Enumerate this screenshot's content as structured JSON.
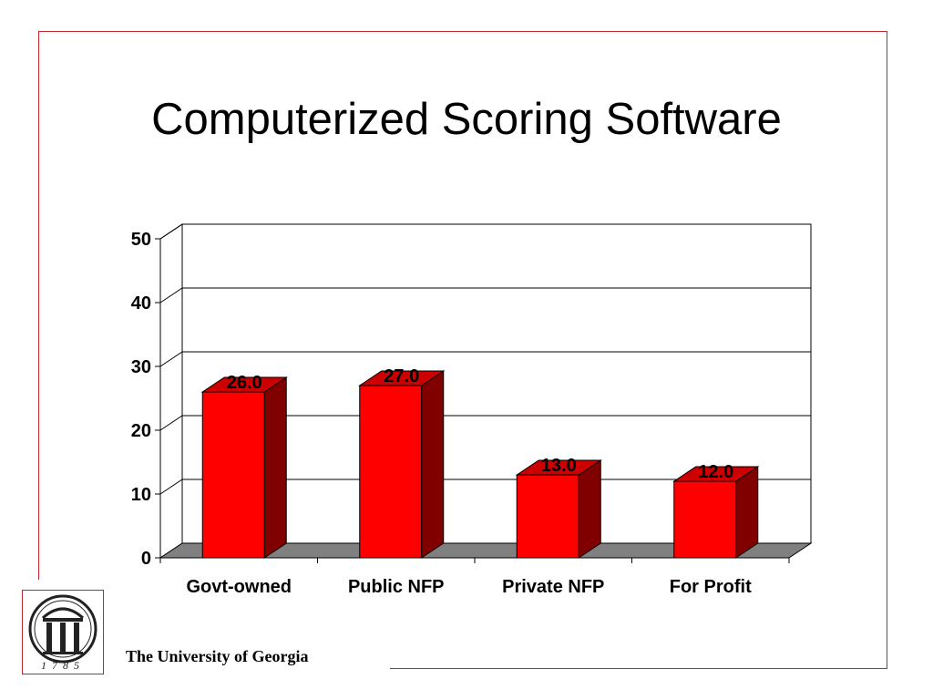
{
  "slide": {
    "title": "Computerized Scoring Software",
    "footer": "The University of Georgia",
    "logo_year": "1785",
    "frame_color": "#c0262c"
  },
  "chart_data": {
    "type": "bar",
    "style": "3d",
    "categories": [
      "Govt-owned",
      "Public NFP",
      "Private NFP",
      "For Profit"
    ],
    "values": [
      26.0,
      27.0,
      13.0,
      12.0
    ],
    "data_labels": [
      "26.0",
      "27.0",
      "13.0",
      "12.0"
    ],
    "yticks": [
      0,
      10,
      20,
      30,
      40,
      50
    ],
    "ylim": [
      0,
      50
    ],
    "grid": true,
    "legend": "none",
    "bar_color": "#ff0000",
    "bar_side_color": "#800000",
    "floor_color": "#808080"
  }
}
